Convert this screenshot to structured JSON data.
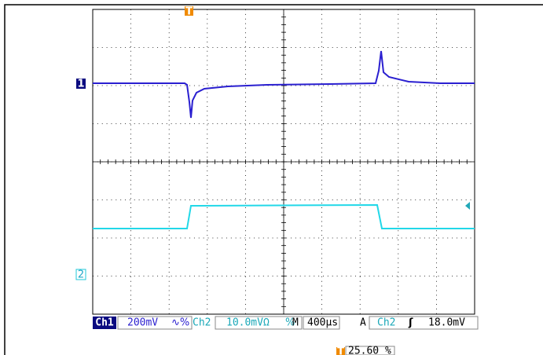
{
  "markers": {
    "trigger_top": "T",
    "ch1": "1",
    "ch2": "2",
    "trigger_bottom": "T"
  },
  "status": {
    "ch1_label": "Ch1",
    "ch1_scale": "200mV",
    "ch1_coupling": "∿%",
    "ch2_label": "Ch2",
    "ch2_scale": "10.0mVΩ",
    "ch2_coupling": "%",
    "timebase_label": "M",
    "timebase": "400µs",
    "trigger_mode": "A",
    "trigger_source": "Ch2",
    "trigger_slope": "ʃ",
    "trigger_level": "18.0mV",
    "trigger_position": "25.60 %"
  }
}
